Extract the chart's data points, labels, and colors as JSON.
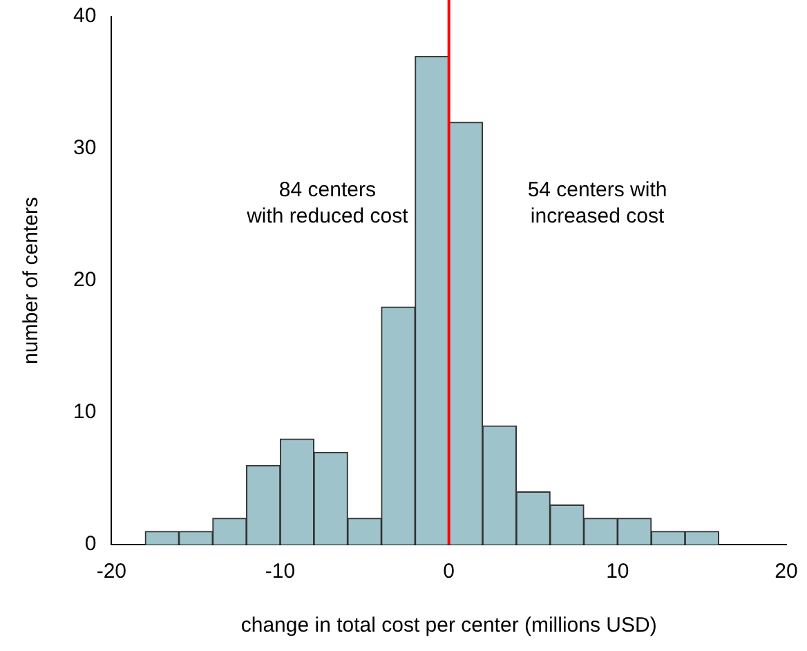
{
  "chart_data": {
    "type": "histogram",
    "xlabel": "change in total cost per center (millions USD)",
    "ylabel": "number of centers",
    "bins": [
      -18,
      -16,
      -14,
      -12,
      -10,
      -8,
      -6,
      -4,
      -2,
      0,
      2,
      4,
      6,
      8,
      10,
      12,
      14,
      16
    ],
    "values": [
      1,
      1,
      2,
      6,
      8,
      7,
      2,
      18,
      37,
      32,
      9,
      4,
      3,
      2,
      2,
      1,
      1
    ],
    "color": "#9fc3cb",
    "xlim": [
      -20,
      20
    ],
    "xticks": [
      -20,
      -10,
      0,
      10,
      20
    ],
    "ylim": [
      0,
      40
    ],
    "yticks": [
      0,
      10,
      20,
      30,
      40
    ],
    "grid": false,
    "legend": false,
    "ref_lines": [
      {
        "axis": "x",
        "value": 0,
        "color": "#ff0000"
      }
    ],
    "annotations": [
      "84 centers\nwith reduced cost",
      "54 centers with\nincreased cost"
    ]
  }
}
